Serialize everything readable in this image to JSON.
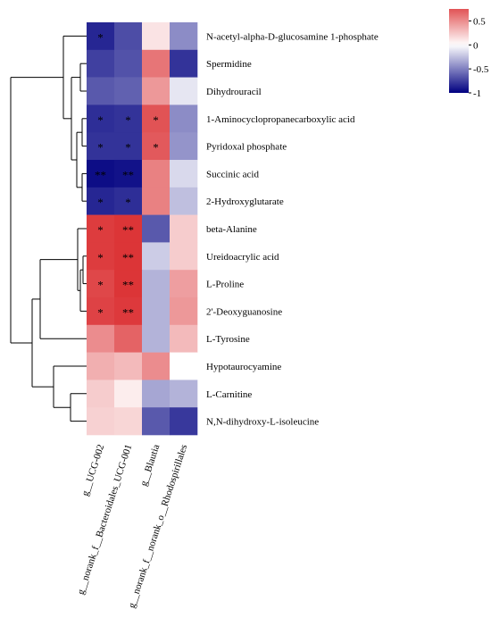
{
  "chart_data": {
    "type": "heatmap",
    "title": "",
    "xlabel": "",
    "ylabel": "",
    "columns": [
      "g__UCG-002",
      "g__norank_f__Bacteroidales_UCG-001",
      "g__Blautia",
      "g__norank_f__norank_o__Rhodospirillales"
    ],
    "rows": [
      "N-acetyl-alpha-D-glucosamine 1-phosphate",
      "Spermidine",
      "Dihydrouracil",
      "1-Aminocyclopropanecarboxylic acid",
      "Pyridoxal phosphate",
      "Succinic acid",
      "2-Hydroxyglutarate",
      "beta-Alanine",
      "Ureidoacrylic acid",
      "L-Proline",
      "2'-Deoxyguanosine",
      "L-Tyrosine",
      "Hypotaurocyamine",
      "L-Carnitine",
      "N,N-dihydroxy-L-isoleucine"
    ],
    "values": [
      [
        -0.85,
        -0.7,
        0.12,
        -0.45
      ],
      [
        -0.75,
        -0.68,
        0.6,
        -0.8
      ],
      [
        -0.65,
        -0.62,
        0.45,
        -0.1
      ],
      [
        -0.82,
        -0.8,
        0.75,
        -0.45
      ],
      [
        -0.8,
        -0.8,
        0.72,
        -0.42
      ],
      [
        -0.95,
        -0.93,
        0.55,
        -0.15
      ],
      [
        -0.85,
        -0.82,
        0.55,
        -0.25
      ],
      [
        0.85,
        0.88,
        -0.65,
        0.22
      ],
      [
        0.85,
        0.88,
        -0.2,
        0.22
      ],
      [
        0.8,
        0.88,
        -0.3,
        0.42
      ],
      [
        0.82,
        0.86,
        -0.3,
        0.45
      ],
      [
        0.5,
        0.68,
        -0.3,
        0.3
      ],
      [
        0.35,
        0.3,
        0.5,
        0.0
      ],
      [
        0.22,
        0.08,
        -0.35,
        -0.3
      ],
      [
        0.2,
        0.18,
        -0.65,
        -0.78
      ]
    ],
    "stars": [
      [
        "*",
        "",
        "",
        ""
      ],
      [
        "",
        "",
        "",
        ""
      ],
      [
        "",
        "",
        "",
        ""
      ],
      [
        "*",
        "*",
        "*",
        ""
      ],
      [
        "*",
        "*",
        "*",
        ""
      ],
      [
        "**",
        "**",
        "",
        ""
      ],
      [
        "*",
        "*",
        "",
        ""
      ],
      [
        "*",
        "**",
        "",
        ""
      ],
      [
        "*",
        "**",
        "",
        ""
      ],
      [
        "*",
        "**",
        "",
        ""
      ],
      [
        "*",
        "**",
        "",
        ""
      ],
      [
        "",
        "",
        "",
        ""
      ],
      [
        "",
        "",
        "",
        ""
      ],
      [
        "",
        "",
        "",
        ""
      ],
      [
        "",
        "",
        "",
        ""
      ]
    ],
    "colorbar": {
      "min": -1,
      "max": 0.75,
      "ticks": [
        {
          "value": 0.5,
          "label": "0.5"
        },
        {
          "value": 0,
          "label": "0"
        },
        {
          "value": -0.5,
          "label": "-0.5"
        },
        {
          "value": -1,
          "label": "-1"
        }
      ],
      "colors": {
        "high": "#d7191c",
        "mid": "#ffffff",
        "low": "#000080"
      }
    },
    "legend_placement": "top-right",
    "grid": false
  }
}
